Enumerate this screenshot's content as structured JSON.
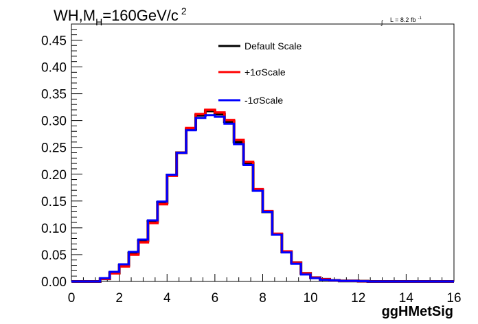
{
  "chart_data": {
    "type": "line",
    "step": true,
    "title_parts": {
      "prefix": "WH,M",
      "sub": "H",
      "mid": "=160GeV/c",
      "sup": "2"
    },
    "lumi_parts": {
      "integral": "∫",
      "text": "L = 8.2 fb",
      "sup": "-1"
    },
    "xlabel": "ggHMetSig",
    "ylabel": "",
    "xlim": [
      0,
      16
    ],
    "ylim": [
      0,
      0.48
    ],
    "xticks": [
      0,
      2,
      4,
      6,
      8,
      10,
      12,
      14,
      16
    ],
    "xtick_labels": [
      "0",
      "2",
      "4",
      "6",
      "8",
      "10",
      "12",
      "14",
      "16"
    ],
    "yticks": [
      0,
      0.05,
      0.1,
      0.15,
      0.2,
      0.25,
      0.3,
      0.35,
      0.4,
      0.45
    ],
    "ytick_labels": [
      "0.00",
      "0.05",
      "0.10",
      "0.15",
      "0.20",
      "0.25",
      "0.30",
      "0.35",
      "0.40",
      "0.45"
    ],
    "bin_width": 0.4,
    "bin_edges_start": 0,
    "legend_position": "top-center",
    "grid": false,
    "series": [
      {
        "name": "Default Scale",
        "color": "#000000",
        "values": [
          0,
          0,
          0,
          0.005,
          0.016,
          0.03,
          0.053,
          0.076,
          0.112,
          0.147,
          0.198,
          0.24,
          0.284,
          0.31,
          0.318,
          0.312,
          0.298,
          0.26,
          0.22,
          0.17,
          0.13,
          0.088,
          0.055,
          0.035,
          0.015,
          0.007,
          0.004,
          0.002,
          0.001,
          0.001,
          0.0005,
          0,
          0,
          0,
          0,
          0,
          0,
          0,
          0,
          0
        ]
      },
      {
        "name": "+1σScale",
        "color": "#ff0000",
        "values": [
          0,
          0,
          0,
          0.005,
          0.015,
          0.028,
          0.05,
          0.073,
          0.109,
          0.144,
          0.197,
          0.24,
          0.286,
          0.312,
          0.32,
          0.315,
          0.301,
          0.264,
          0.223,
          0.172,
          0.131,
          0.089,
          0.056,
          0.035,
          0.015,
          0.007,
          0.004,
          0.002,
          0.001,
          0.001,
          0.0005,
          0,
          0,
          0,
          0,
          0,
          0,
          0,
          0,
          0
        ]
      },
      {
        "name": "-1σScale",
        "color": "#0000ff",
        "values": [
          0,
          0,
          0,
          0.006,
          0.018,
          0.032,
          0.055,
          0.078,
          0.114,
          0.149,
          0.199,
          0.24,
          0.282,
          0.305,
          0.31,
          0.307,
          0.294,
          0.256,
          0.217,
          0.169,
          0.13,
          0.087,
          0.054,
          0.033,
          0.013,
          0.006,
          0.003,
          0.002,
          0.001,
          0.001,
          0.0005,
          0,
          0,
          0,
          0,
          0,
          0,
          0,
          0,
          0
        ]
      }
    ]
  }
}
